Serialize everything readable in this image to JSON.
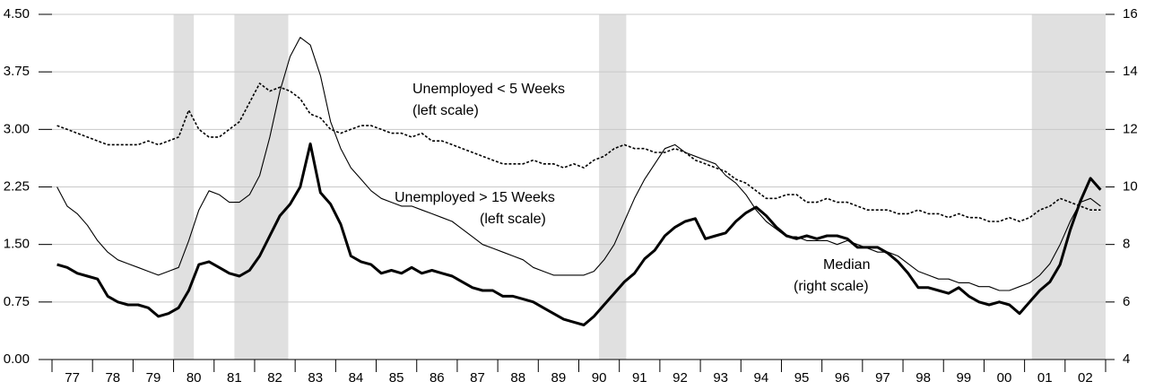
{
  "chart_data": {
    "type": "line",
    "xlim": [
      1977,
      2003
    ],
    "xticks": [
      {
        "value": 1977.5,
        "label": "77"
      },
      {
        "value": 1978.5,
        "label": "78"
      },
      {
        "value": 1979.5,
        "label": "79"
      },
      {
        "value": 1980.5,
        "label": "80"
      },
      {
        "value": 1981.5,
        "label": "81"
      },
      {
        "value": 1982.5,
        "label": "82"
      },
      {
        "value": 1983.5,
        "label": "83"
      },
      {
        "value": 1984.5,
        "label": "84"
      },
      {
        "value": 1985.5,
        "label": "85"
      },
      {
        "value": 1986.5,
        "label": "86"
      },
      {
        "value": 1987.5,
        "label": "87"
      },
      {
        "value": 1988.5,
        "label": "88"
      },
      {
        "value": 1989.5,
        "label": "89"
      },
      {
        "value": 1990.5,
        "label": "90"
      },
      {
        "value": 1991.5,
        "label": "91"
      },
      {
        "value": 1992.5,
        "label": "92"
      },
      {
        "value": 1993.5,
        "label": "93"
      },
      {
        "value": 1994.5,
        "label": "94"
      },
      {
        "value": 1995.5,
        "label": "95"
      },
      {
        "value": 1996.5,
        "label": "96"
      },
      {
        "value": 1997.5,
        "label": "97"
      },
      {
        "value": 1998.5,
        "label": "98"
      },
      {
        "value": 1999.5,
        "label": "99"
      },
      {
        "value": 2000.5,
        "label": "00"
      },
      {
        "value": 2001.5,
        "label": "01"
      },
      {
        "value": 2002.5,
        "label": "02"
      }
    ],
    "ylim": [
      0,
      4.5
    ],
    "yticks": [
      {
        "value": 0,
        "label": "0.00"
      },
      {
        "value": 0.75,
        "label": "0.75"
      },
      {
        "value": 1.5,
        "label": "1.50"
      },
      {
        "value": 2.25,
        "label": "2.25"
      },
      {
        "value": 3,
        "label": "3.00"
      },
      {
        "value": 3.75,
        "label": "3.75"
      },
      {
        "value": 4.5,
        "label": "4.50"
      }
    ],
    "y2lim": [
      4,
      16
    ],
    "y2ticks": [
      4,
      6,
      8,
      10,
      12,
      14,
      16
    ],
    "grid": true,
    "shaded": [
      [
        1980.0,
        1980.5
      ],
      [
        1981.5,
        1982.83
      ],
      [
        1990.5,
        1991.17
      ],
      [
        2001.18,
        2003
      ]
    ],
    "annotations": [
      "Unemployed < 5 Weeks",
      "(left scale)",
      "Unemployed > 15 Weeks",
      "(left scale)",
      "Median",
      "(right scale)"
    ],
    "x": [
      1977.125,
      1977.375,
      1977.625,
      1977.875,
      1978.125,
      1978.375,
      1978.625,
      1978.875,
      1979.125,
      1979.375,
      1979.625,
      1979.875,
      1980.125,
      1980.375,
      1980.625,
      1980.875,
      1981.125,
      1981.375,
      1981.625,
      1981.875,
      1982.125,
      1982.375,
      1982.625,
      1982.875,
      1983.125,
      1983.375,
      1983.625,
      1983.875,
      1984.125,
      1984.375,
      1984.625,
      1984.875,
      1985.125,
      1985.375,
      1985.625,
      1985.875,
      1986.125,
      1986.375,
      1986.625,
      1986.875,
      1987.125,
      1987.375,
      1987.625,
      1987.875,
      1988.125,
      1988.375,
      1988.625,
      1988.875,
      1989.125,
      1989.375,
      1989.625,
      1989.875,
      1990.125,
      1990.375,
      1990.625,
      1990.875,
      1991.125,
      1991.375,
      1991.625,
      1991.875,
      1992.125,
      1992.375,
      1992.625,
      1992.875,
      1993.125,
      1993.375,
      1993.625,
      1993.875,
      1994.125,
      1994.375,
      1994.625,
      1994.875,
      1995.125,
      1995.375,
      1995.625,
      1995.875,
      1996.125,
      1996.375,
      1996.625,
      1996.875,
      1997.125,
      1997.375,
      1997.625,
      1997.875,
      1998.125,
      1998.375,
      1998.625,
      1998.875,
      1999.125,
      1999.375,
      1999.625,
      1999.875,
      2000.125,
      2000.375,
      2000.625,
      2000.875,
      2001.125,
      2001.375,
      2001.625,
      2001.875,
      2002.125,
      2002.375,
      2002.625,
      2002.875
    ],
    "series": [
      {
        "color": "#000000",
        "dashed": true,
        "line_width": 1.6,
        "values": [
          3.05,
          3.0,
          2.95,
          2.9,
          2.85,
          2.8,
          2.8,
          2.8,
          2.8,
          2.85,
          2.8,
          2.85,
          2.9,
          3.25,
          3.0,
          2.9,
          2.9,
          3.0,
          3.1,
          3.35,
          3.6,
          3.5,
          3.55,
          3.5,
          3.4,
          3.2,
          3.15,
          3.0,
          2.95,
          3.0,
          3.05,
          3.05,
          3.0,
          2.95,
          2.95,
          2.9,
          2.95,
          2.85,
          2.85,
          2.8,
          2.75,
          2.7,
          2.65,
          2.6,
          2.55,
          2.55,
          2.55,
          2.6,
          2.55,
          2.55,
          2.5,
          2.55,
          2.5,
          2.6,
          2.65,
          2.75,
          2.8,
          2.75,
          2.75,
          2.7,
          2.7,
          2.75,
          2.7,
          2.6,
          2.55,
          2.5,
          2.45,
          2.35,
          2.3,
          2.2,
          2.1,
          2.1,
          2.15,
          2.15,
          2.05,
          2.05,
          2.1,
          2.05,
          2.05,
          2.0,
          1.95,
          1.95,
          1.95,
          1.9,
          1.9,
          1.95,
          1.9,
          1.9,
          1.85,
          1.9,
          1.85,
          1.85,
          1.8,
          1.8,
          1.85,
          1.8,
          1.85,
          1.95,
          2.0,
          2.1,
          2.05,
          2.0,
          1.95,
          1.95
        ]
      },
      {
        "color": "#000000",
        "dashed": false,
        "line_width": 1.1,
        "values": [
          2.25,
          2.0,
          1.9,
          1.75,
          1.55,
          1.4,
          1.3,
          1.25,
          1.2,
          1.15,
          1.1,
          1.15,
          1.2,
          1.55,
          1.95,
          2.2,
          2.15,
          2.05,
          2.05,
          2.15,
          2.4,
          2.9,
          3.5,
          3.95,
          4.2,
          4.1,
          3.7,
          3.1,
          2.75,
          2.5,
          2.35,
          2.2,
          2.1,
          2.05,
          2.0,
          2.0,
          1.95,
          1.9,
          1.85,
          1.8,
          1.7,
          1.6,
          1.5,
          1.45,
          1.4,
          1.35,
          1.3,
          1.2,
          1.15,
          1.1,
          1.1,
          1.1,
          1.1,
          1.15,
          1.3,
          1.5,
          1.8,
          2.1,
          2.35,
          2.55,
          2.75,
          2.8,
          2.7,
          2.65,
          2.6,
          2.55,
          2.4,
          2.3,
          2.15,
          1.95,
          1.8,
          1.7,
          1.6,
          1.6,
          1.55,
          1.55,
          1.55,
          1.5,
          1.55,
          1.5,
          1.45,
          1.4,
          1.4,
          1.35,
          1.25,
          1.15,
          1.1,
          1.05,
          1.05,
          1.0,
          1.0,
          0.95,
          0.95,
          0.9,
          0.9,
          0.95,
          1.0,
          1.1,
          1.25,
          1.5,
          1.8,
          2.05,
          2.1,
          2.0
        ]
      },
      {
        "color": "#000000",
        "dashed": false,
        "line_width": 3,
        "axis": "y2",
        "values": [
          7.3,
          7.2,
          7.0,
          6.9,
          6.8,
          6.2,
          6.0,
          5.9,
          5.9,
          5.8,
          5.5,
          5.6,
          5.8,
          6.4,
          7.3,
          7.4,
          7.2,
          7.0,
          6.9,
          7.1,
          7.6,
          8.3,
          9.0,
          9.4,
          10.0,
          11.5,
          9.8,
          9.4,
          8.7,
          7.6,
          7.4,
          7.3,
          7.0,
          7.1,
          7.0,
          7.2,
          7.0,
          7.1,
          7.0,
          6.9,
          6.7,
          6.5,
          6.4,
          6.4,
          6.2,
          6.2,
          6.1,
          6.0,
          5.8,
          5.6,
          5.4,
          5.3,
          5.2,
          5.5,
          5.9,
          6.3,
          6.7,
          7.0,
          7.5,
          7.8,
          8.3,
          8.6,
          8.8,
          8.9,
          8.2,
          8.3,
          8.4,
          8.8,
          9.1,
          9.3,
          9.0,
          8.6,
          8.3,
          8.2,
          8.3,
          8.2,
          8.3,
          8.3,
          8.2,
          7.9,
          7.9,
          7.9,
          7.7,
          7.4,
          7.0,
          6.5,
          6.5,
          6.4,
          6.3,
          6.5,
          6.2,
          6.0,
          5.9,
          6.0,
          5.9,
          5.6,
          6.0,
          6.4,
          6.7,
          7.3,
          8.5,
          9.5,
          10.3,
          9.9
        ]
      }
    ]
  }
}
